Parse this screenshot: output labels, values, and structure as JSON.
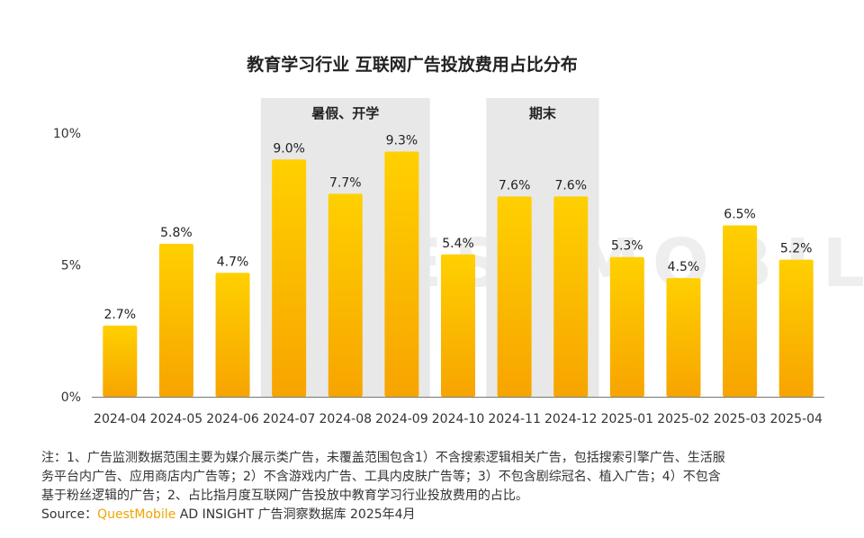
{
  "chart_data": {
    "type": "bar",
    "title": "教育学习行业 互联网广告投放费用占比分布",
    "categories": [
      "2024-04",
      "2024-05",
      "2024-06",
      "2024-07",
      "2024-08",
      "2024-09",
      "2024-10",
      "2024-11",
      "2024-12",
      "2025-01",
      "2025-02",
      "2025-03",
      "2025-04"
    ],
    "values": [
      2.7,
      5.8,
      4.7,
      9.0,
      7.7,
      9.3,
      5.4,
      7.6,
      7.6,
      5.3,
      4.5,
      6.5,
      5.2
    ],
    "value_labels": [
      "2.7%",
      "5.8%",
      "4.7%",
      "9.0%",
      "7.7%",
      "9.3%",
      "5.4%",
      "7.6%",
      "7.6%",
      "5.3%",
      "4.5%",
      "6.5%",
      "5.2%"
    ],
    "ylim": [
      0,
      10
    ],
    "yticks": [
      "0%",
      "5%",
      "10%"
    ],
    "xlabel": "",
    "ylabel": "",
    "grid": false,
    "highlight_bands": [
      {
        "label": "暑假、开学",
        "from": "2024-07",
        "to": "2024-09"
      },
      {
        "label": "期末",
        "from": "2024-11",
        "to": "2024-12"
      }
    ],
    "colors": {
      "bar_top": "#ffd000",
      "bar_bottom": "#f7a400",
      "band": "#e8e8e8",
      "axis": "#777777"
    }
  },
  "watermark": "QUESTMOBILE",
  "notes": {
    "line1": "注：1、广告监测数据范围主要为媒介展示类广告，未覆盖范围包含1）不含搜索逻辑相关广告，包括搜索引擎广告、生活服",
    "line2": "务平台内广告、应用商店内广告等；2）不含游戏内广告、工具内皮肤广告等；3）不包含剧综冠名、植入广告；4）不包含",
    "line3": "基于粉丝逻辑的广告；2、占比指月度互联网广告投放中教育学习行业投放费用的占比。"
  },
  "source": {
    "prefix": "Source：",
    "brand": "QuestMobile",
    "suffix": " AD INSIGHT 广告洞察数据库 2025年4月"
  }
}
